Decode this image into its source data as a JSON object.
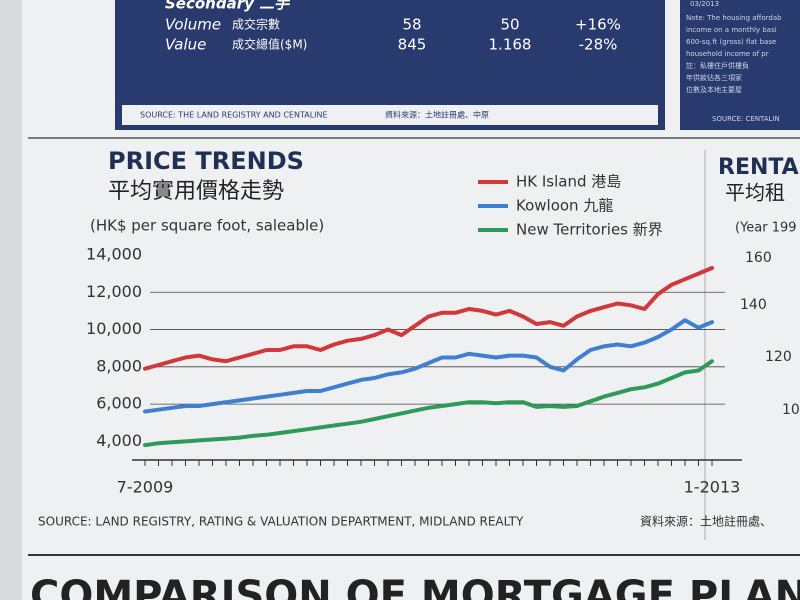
{
  "top_table": {
    "heading": "Secondary 二手",
    "rows": [
      [
        "Volume",
        "成交宗數",
        "58",
        "50",
        "+16%"
      ],
      [
        "Value",
        "成交總值($M)",
        "845",
        "1.168",
        "-28%"
      ]
    ],
    "source": "SOURCE: THE LAND REGISTRY AND CENTALINE",
    "source_zh": "資料來源：土地註冊處、中原"
  },
  "side_note": {
    "date": "03/2013",
    "lines": [
      "Note: The housing affordab",
      "income on a monthly basi",
      "600-sq.ft (gross) flat base",
      "household income of pr",
      "註：私樓住戶供樓負",
      "年供款佔各三項家",
      "位數及本地主要屋"
    ],
    "source": "SOURCE: CENTALIN"
  },
  "side_chart": {
    "title": "RENTA",
    "subtitle": "平均租",
    "unit": "(Year 199",
    "ticks": [
      "160",
      "140",
      "120",
      "10"
    ]
  },
  "chart_data": {
    "type": "line",
    "title": "PRICE TRENDS",
    "subtitle": "平均實用價格走勢",
    "y_label": "(HK$ per square foot, saleable)",
    "categories": [
      "7-2009",
      null,
      null,
      null,
      null,
      null,
      null,
      null,
      null,
      null,
      null,
      null,
      null,
      null,
      null,
      null,
      null,
      null,
      null,
      null,
      null,
      null,
      null,
      null,
      null,
      null,
      null,
      null,
      null,
      null,
      null,
      null,
      null,
      null,
      null,
      null,
      null,
      null,
      null,
      null,
      null,
      null,
      "1-2013"
    ],
    "series": [
      {
        "name": "HK Island 港島",
        "color": "#d2373a",
        "values": [
          7900,
          8100,
          8300,
          8500,
          8600,
          8400,
          8300,
          8500,
          8700,
          8900,
          8900,
          9100,
          9100,
          8900,
          9200,
          9400,
          9500,
          9700,
          10000,
          9700,
          10200,
          10700,
          10900,
          10900,
          11100,
          11000,
          10800,
          11000,
          10700,
          10300,
          10400,
          10200,
          10700,
          11000,
          11200,
          11400,
          11300,
          11100,
          11900,
          12400,
          12700,
          13000,
          13300
        ]
      },
      {
        "name": "Kowloon 九龍",
        "color": "#3e7fcf",
        "values": [
          5600,
          5700,
          5800,
          5900,
          5900,
          6000,
          6100,
          6200,
          6300,
          6400,
          6500,
          6600,
          6700,
          6700,
          6900,
          7100,
          7300,
          7400,
          7600,
          7700,
          7900,
          8200,
          8500,
          8500,
          8700,
          8600,
          8500,
          8600,
          8600,
          8500,
          8000,
          7800,
          8400,
          8900,
          9100,
          9200,
          9100,
          9300,
          9600,
          10000,
          10500,
          10100,
          10400
        ]
      },
      {
        "name": "New Territories 新界",
        "color": "#2e9a5a",
        "values": [
          3800,
          3900,
          3950,
          4000,
          4050,
          4100,
          4150,
          4200,
          4300,
          4350,
          4450,
          4550,
          4650,
          4750,
          4850,
          4950,
          5050,
          5200,
          5350,
          5500,
          5650,
          5800,
          5900,
          6000,
          6100,
          6100,
          6050,
          6100,
          6100,
          5850,
          5900,
          5850,
          5900,
          6150,
          6400,
          6600,
          6800,
          6900,
          7100,
          7400,
          7700,
          7800,
          8300
        ]
      }
    ],
    "ylim": [
      3000,
      14000
    ],
    "yticks": [
      {
        "value": 4000,
        "label": "4,000"
      },
      {
        "value": 6000,
        "label": "6,000"
      },
      {
        "value": 8000,
        "label": "8,000"
      },
      {
        "value": 10000,
        "label": "10,000"
      },
      {
        "value": 12000,
        "label": "12,000"
      },
      {
        "value": 14000,
        "label": "14,000"
      }
    ],
    "grid": true,
    "source": "SOURCE: LAND REGISTRY, RATING & VALUATION DEPARTMENT, MIDLAND REALTY",
    "source_zh": "資料來源：土地註冊處、"
  },
  "next_section": {
    "title": "COMPARISON OF MORTGAGE PLANS"
  }
}
